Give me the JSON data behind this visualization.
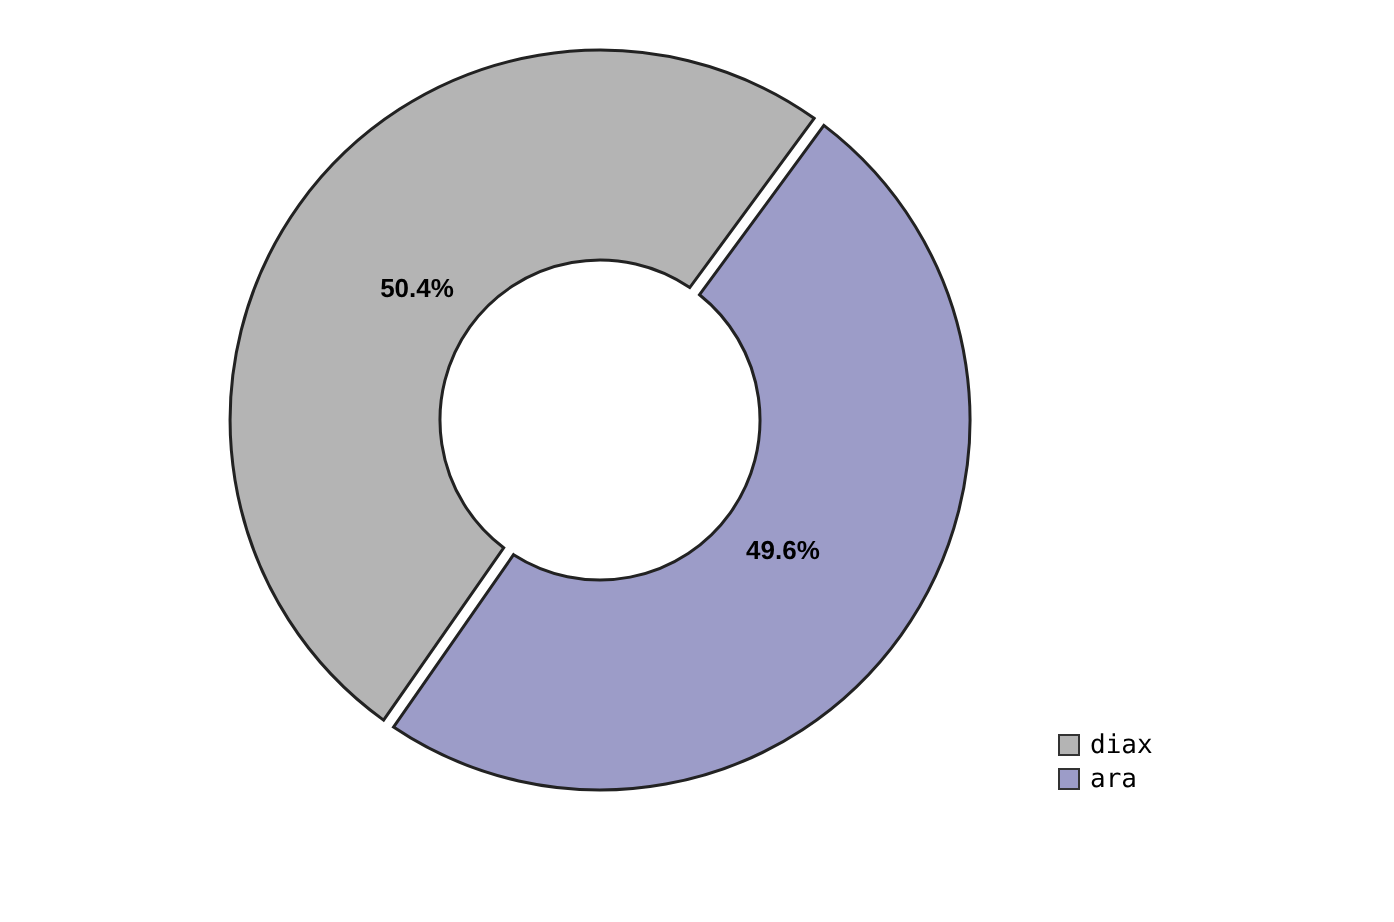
{
  "chart_data": {
    "type": "donut",
    "categories": [
      "diax",
      "ara"
    ],
    "values": [
      50.4,
      49.6
    ],
    "colors": [
      "#b4b4b4",
      "#9c9cc8"
    ],
    "value_labels": [
      "50.4%",
      "49.6%"
    ],
    "legend": "bottom right"
  }
}
